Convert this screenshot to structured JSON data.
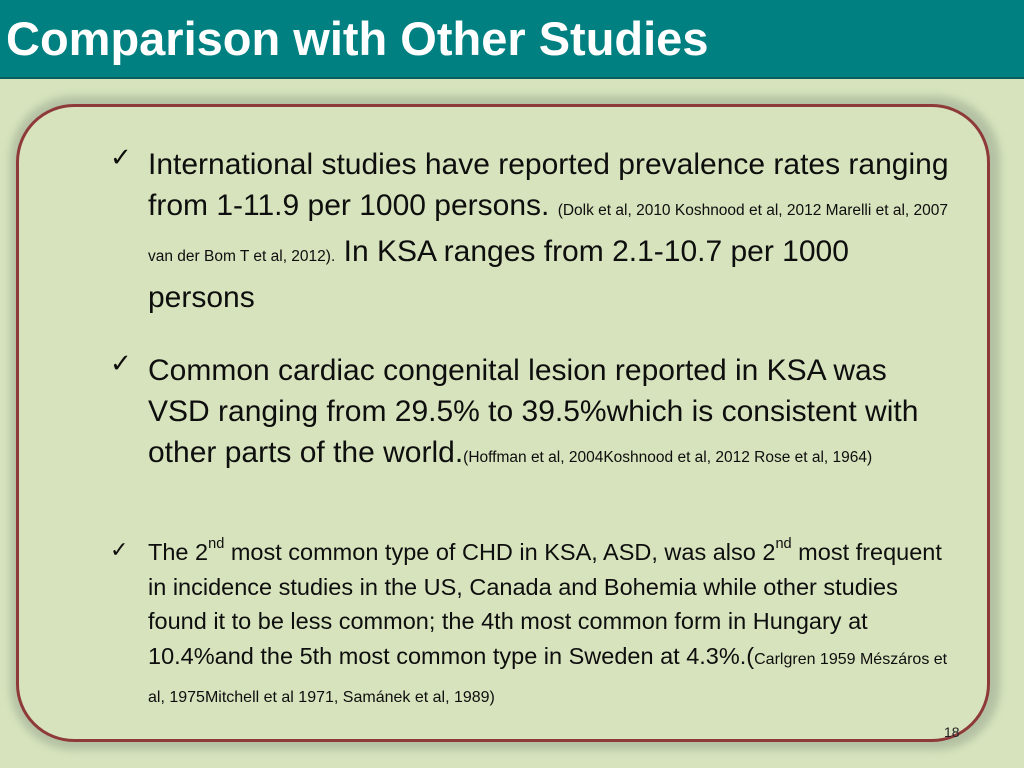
{
  "title": "Comparison with Other Studies",
  "bullets": {
    "b1": {
      "text_a": "International studies have reported prevalence rates ranging from 1-11.9 per 1000 persons.",
      "cite": "(Dolk et al, 2010 Koshnood et al, 2012 Marelli et al, 2007 van der Bom T et al, 2012).",
      "text_b": "In KSA  ranges from 2.1-10.7 per 1000 persons"
    },
    "b2": {
      "text_a": "Common cardiac congenital lesion reported in KSA was VSD ranging from 29.5% to 39.5%which is consistent with other parts of the world.",
      "cite": "(Hoffman  et al, 2004Koshnood et al, 2012 Rose et al, 1964)"
    },
    "b3": {
      "p1": "The 2",
      "sup1": "nd",
      "p2": " most common type of CHD in KSA, ASD, was also 2",
      "sup2": "nd",
      "p3": " most frequent in incidence studies in the US, Canada and Bohemia while other studies found it to be less common; the 4th most common form in Hungary at 10.4%and the 5th most common type in Sweden at 4.3%.(",
      "cite": "Carlgren  1959 Mészáros  et al, 1975Mitchell  et al 1971, Samánek et al, 1989)"
    }
  },
  "check_glyph": "✓",
  "page_number": "18"
}
